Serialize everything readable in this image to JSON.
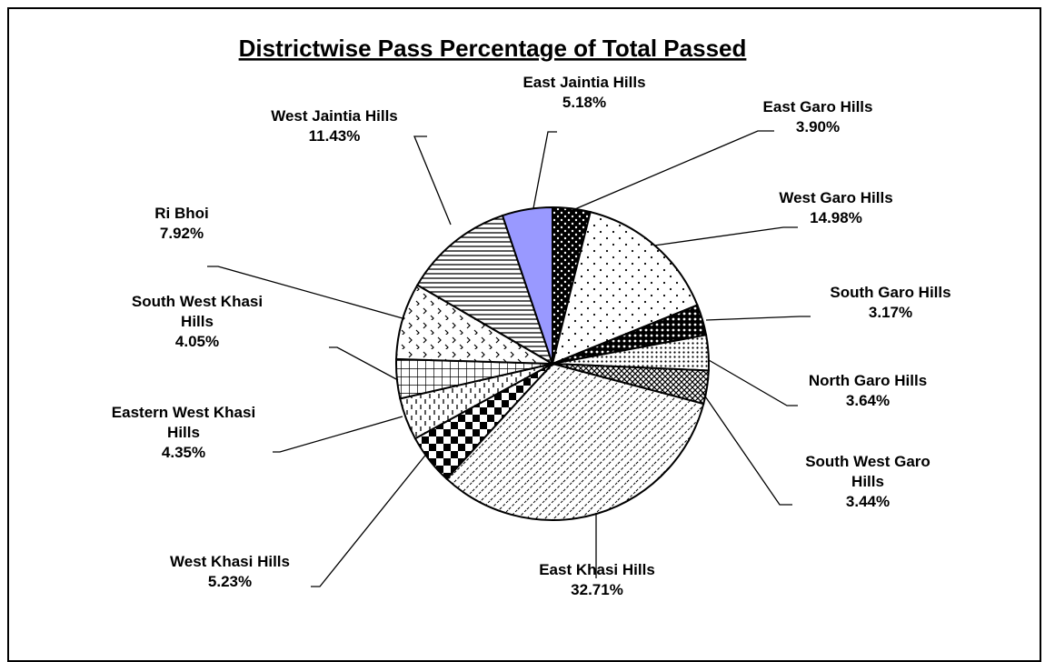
{
  "chart_data": {
    "type": "pie",
    "title": "Districtwise Pass Percentage of Total Passed",
    "start_angle_deg": 0,
    "direction": "clockwise",
    "slices": [
      {
        "label": "East Garo Hills",
        "value": 3.9,
        "value_label": "3.90%",
        "fill": "pattern-dots-black",
        "label_lines": [
          "East Garo Hills"
        ]
      },
      {
        "label": "West Garo Hills",
        "value": 14.98,
        "value_label": "14.98%",
        "fill": "pattern-sparse-dots",
        "label_lines": [
          "West Garo Hills"
        ]
      },
      {
        "label": "South Garo Hills",
        "value": 3.17,
        "value_label": "3.17%",
        "fill": "pattern-dense-dots",
        "label_lines": [
          "South Garo Hills"
        ]
      },
      {
        "label": "North Garo Hills",
        "value": 3.64,
        "value_label": "3.64%",
        "fill": "pattern-small-dots",
        "label_lines": [
          "North Garo Hills"
        ]
      },
      {
        "label": "South West Garo Hills",
        "value": 3.44,
        "value_label": "3.44%",
        "fill": "pattern-crosshatch",
        "label_lines": [
          "South West Garo",
          "Hills"
        ]
      },
      {
        "label": "East Khasi Hills",
        "value": 32.71,
        "value_label": "32.71%",
        "fill": "pattern-diagonal",
        "label_lines": [
          "East Khasi Hills"
        ]
      },
      {
        "label": "West Khasi Hills",
        "value": 5.23,
        "value_label": "5.23%",
        "fill": "pattern-checker",
        "label_lines": [
          "West Khasi Hills"
        ]
      },
      {
        "label": "Eastern West Khasi Hills",
        "value": 4.35,
        "value_label": "4.35%",
        "fill": "pattern-dashes",
        "label_lines": [
          "Eastern West Khasi",
          "Hills"
        ]
      },
      {
        "label": "South West Khasi Hills",
        "value": 4.05,
        "value_label": "4.05%",
        "fill": "pattern-grid",
        "label_lines": [
          "South West Khasi",
          "Hills"
        ]
      },
      {
        "label": "Ri Bhoi",
        "value": 7.92,
        "value_label": "7.92%",
        "fill": "pattern-zigzag",
        "label_lines": [
          "Ri Bhoi"
        ]
      },
      {
        "label": "West Jaintia Hills",
        "value": 11.43,
        "value_label": "11.43%",
        "fill": "pattern-horizontal",
        "label_lines": [
          "West Jaintia Hills"
        ]
      },
      {
        "label": "East Jaintia Hills",
        "value": 5.18,
        "value_label": "5.18%",
        "fill": "#9999ff",
        "label_lines": [
          "East Jaintia Hills"
        ]
      }
    ]
  }
}
